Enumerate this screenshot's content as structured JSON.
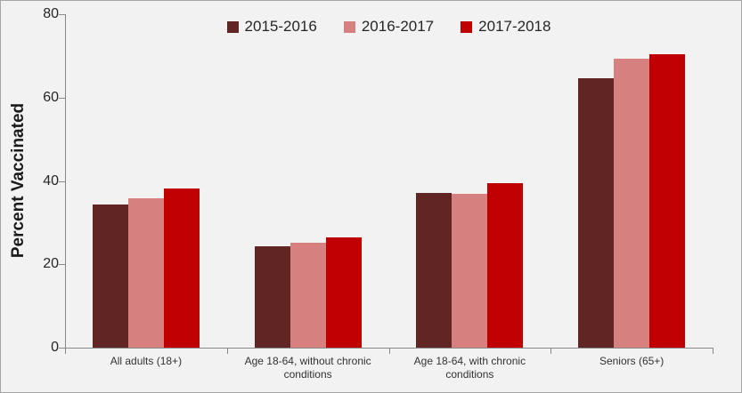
{
  "chart_data": {
    "type": "bar",
    "title": "",
    "xlabel": "",
    "ylabel": "Percent Vaccinated",
    "ylim": [
      0,
      80
    ],
    "yticks": [
      0,
      20,
      40,
      60,
      80
    ],
    "grid": false,
    "legend_position": "top-center",
    "categories": [
      "All adults (18+)",
      "Age 18-64, without chronic conditions",
      "Age 18-64, with chronic conditions",
      "Seniors (65+)"
    ],
    "series": [
      {
        "name": "2015-2016",
        "color": "#612523",
        "values": [
          34.3,
          24.4,
          37.2,
          64.7
        ]
      },
      {
        "name": "2016-2017",
        "color": "#D6817F",
        "values": [
          35.8,
          25.2,
          37.0,
          69.3
        ]
      },
      {
        "name": "2017-2018",
        "color": "#C00000",
        "values": [
          38.2,
          26.5,
          39.5,
          70.5
        ]
      }
    ]
  },
  "colors": {
    "background": "#F2F2F2",
    "axis": "#898989",
    "text": "#262626",
    "frame_border": "#A6A6A6"
  }
}
